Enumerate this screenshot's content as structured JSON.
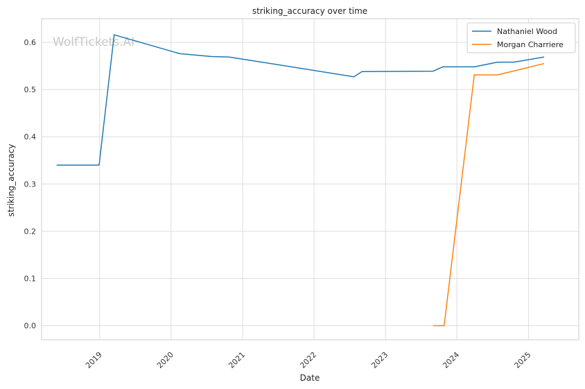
{
  "chart_data": {
    "type": "line",
    "title": "striking_accuracy over time",
    "xlabel": "Date",
    "ylabel": "striking_accuracy",
    "watermark": "WolfTickets.AI",
    "x_ticks": [
      "2019",
      "2020",
      "2021",
      "2022",
      "2023",
      "2024",
      "2025"
    ],
    "y_ticks": [
      "0.0",
      "0.1",
      "0.2",
      "0.3",
      "0.4",
      "0.5",
      "0.6"
    ],
    "xlim": [
      "2018-03-10",
      "2025-09-15"
    ],
    "ylim": [
      -0.03,
      0.65
    ],
    "grid": true,
    "legend_position": "top-right",
    "series": [
      {
        "name": "Nathaniel Wood",
        "color": "#1f77b4",
        "points": [
          [
            "2018-05-26",
            0.34
          ],
          [
            "2018-12-29",
            0.34
          ],
          [
            "2019-03-16",
            0.616
          ],
          [
            "2020-02-15",
            0.576
          ],
          [
            "2020-07-25",
            0.57
          ],
          [
            "2020-10-24",
            0.569
          ],
          [
            "2022-07-23",
            0.527
          ],
          [
            "2022-09-03",
            0.538
          ],
          [
            "2023-09-02",
            0.539
          ],
          [
            "2023-10-21",
            0.548
          ],
          [
            "2024-03-30",
            0.548
          ],
          [
            "2024-07-27",
            0.558
          ],
          [
            "2024-10-19",
            0.558
          ],
          [
            "2025-03-22",
            0.569
          ]
        ]
      },
      {
        "name": "Morgan Charriere",
        "color": "#ff7f0e",
        "points": [
          [
            "2023-09-02",
            0.0
          ],
          [
            "2023-10-28",
            0.0
          ],
          [
            "2024-03-30",
            0.531
          ],
          [
            "2024-07-27",
            0.531
          ],
          [
            "2025-03-22",
            0.555
          ]
        ]
      }
    ]
  }
}
